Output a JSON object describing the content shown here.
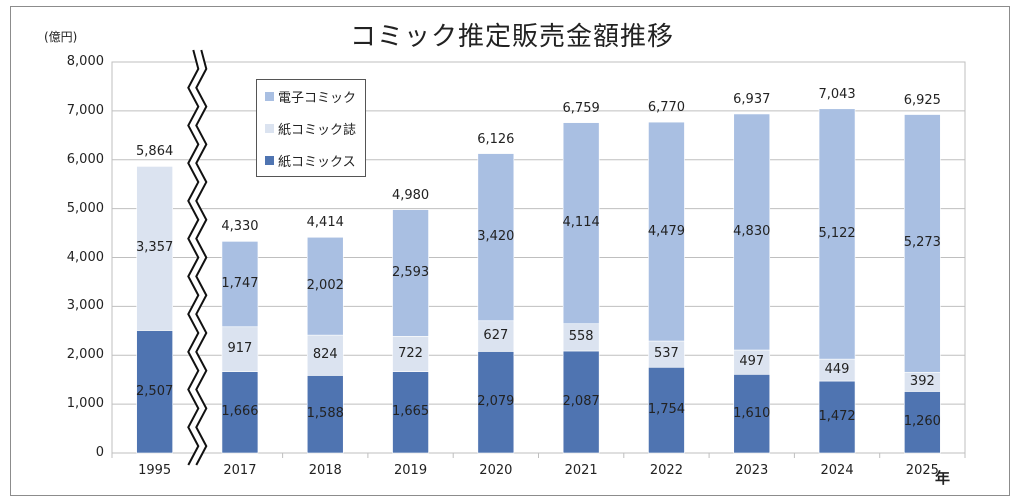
{
  "chart_data": {
    "type": "bar",
    "stacked": true,
    "title": "コミック推定販売金額推移",
    "unit_label": "(億円)",
    "year_suffix": "年",
    "categories": [
      "1995",
      "2017",
      "2018",
      "2019",
      "2020",
      "2021",
      "2022",
      "2023",
      "2024",
      "2025"
    ],
    "series": [
      {
        "name": "紙コミックス",
        "color": "#4f74b1",
        "values": [
          2507,
          1666,
          1588,
          1665,
          2079,
          2087,
          1754,
          1610,
          1472,
          1260
        ]
      },
      {
        "name": "紙コミック誌",
        "color": "#dbe3f0",
        "values": [
          3357,
          917,
          824,
          722,
          627,
          558,
          537,
          497,
          449,
          392
        ]
      },
      {
        "name": "電子コミック",
        "color": "#a9bfe2",
        "values": [
          0,
          1747,
          2002,
          2593,
          3420,
          4114,
          4479,
          4830,
          5122,
          5273
        ]
      }
    ],
    "totals": [
      5864,
      4330,
      4414,
      4980,
      6126,
      6759,
      6770,
      6937,
      7043,
      6925
    ],
    "total_labels": [
      "5,864",
      "4,330",
      "4,414",
      "4,980",
      "6,126",
      "6,759",
      "6,770",
      "6,937",
      "7,043",
      "6,925"
    ],
    "segment_labels": {
      "紙コミックス": [
        "2,507",
        "1,666",
        "1,588",
        "1,665",
        "2,079",
        "2,087",
        "1,754",
        "1,610",
        "1,472",
        "1,260"
      ],
      "紙コミック誌": [
        "3,357",
        "917",
        "824",
        "722",
        "627",
        "558",
        "537",
        "497",
        "449",
        "392"
      ],
      "電子コミック": [
        "",
        "1,747",
        "2,002",
        "2,593",
        "3,420",
        "4,114",
        "4,479",
        "4,830",
        "5,122",
        "5,273"
      ]
    },
    "ylim": [
      0,
      8000
    ],
    "ytick_values": [
      0,
      1000,
      2000,
      3000,
      4000,
      5000,
      6000,
      7000,
      8000
    ],
    "ytick_labels": [
      "0",
      "1,000",
      "2,000",
      "3,000",
      "4,000",
      "5,000",
      "6,000",
      "7,000",
      "8,000"
    ],
    "grid": true,
    "axis_break_after_category": "1995",
    "legend": {
      "position": "top-left",
      "entries": [
        "電子コミック",
        "紙コミック誌",
        "紙コミックス"
      ]
    }
  }
}
